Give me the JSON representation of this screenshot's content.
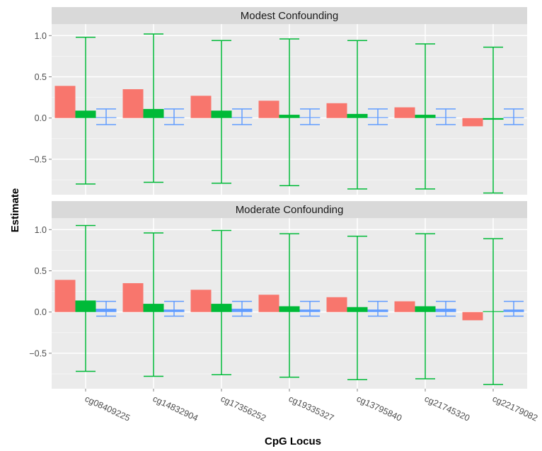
{
  "chart_data": {
    "type": "bar",
    "xlabel": "CpG Locus",
    "ylabel": "Estimate",
    "categories": [
      "cg08409225",
      "cg14832904",
      "cg17356252",
      "cg19335327",
      "cg13795840",
      "cg21745320",
      "cg22179082"
    ],
    "yticks": [
      -0.5,
      0.0,
      0.5,
      1.0
    ],
    "ytick_labels": [
      "−0.5",
      "0.0",
      "0.5",
      "1.0"
    ],
    "ylim": [
      -0.93,
      1.14
    ],
    "grid": true,
    "colors": {
      "series1": "#F8766D",
      "series2": "#00BA38",
      "series3": "#619CFF",
      "panel_bg": "#EBEBEB",
      "strip_bg": "#D9D9D9"
    },
    "panels": [
      {
        "title": "Modest Confounding",
        "series": [
          {
            "values": [
              0.39,
              0.35,
              0.27,
              0.21,
              0.18,
              0.13,
              -0.1
            ]
          },
          {
            "values": [
              0.09,
              0.11,
              0.09,
              0.04,
              0.05,
              0.04,
              -0.02
            ],
            "lower": [
              -0.8,
              -0.78,
              -0.79,
              -0.82,
              -0.86,
              -0.86,
              -0.91
            ],
            "upper": [
              0.98,
              1.02,
              0.94,
              0.96,
              0.94,
              0.9,
              0.86
            ]
          },
          {
            "values": [
              0.01,
              0.01,
              0.01,
              0.01,
              0.01,
              0.01,
              0.01
            ],
            "lower": [
              -0.08,
              -0.08,
              -0.08,
              -0.08,
              -0.08,
              -0.08,
              -0.08
            ],
            "upper": [
              0.11,
              0.11,
              0.11,
              0.11,
              0.11,
              0.11,
              0.11
            ]
          }
        ]
      },
      {
        "title": "Moderate Confounding",
        "series": [
          {
            "values": [
              0.39,
              0.35,
              0.27,
              0.21,
              0.18,
              0.13,
              -0.1
            ]
          },
          {
            "values": [
              0.14,
              0.1,
              0.1,
              0.07,
              0.06,
              0.07,
              0.01
            ],
            "lower": [
              -0.72,
              -0.78,
              -0.76,
              -0.79,
              -0.82,
              -0.81,
              -0.88
            ],
            "upper": [
              1.05,
              0.96,
              0.99,
              0.95,
              0.92,
              0.95,
              0.89
            ]
          },
          {
            "values": [
              0.04,
              0.03,
              0.04,
              0.03,
              0.03,
              0.04,
              0.03
            ],
            "lower": [
              -0.05,
              -0.05,
              -0.05,
              -0.05,
              -0.05,
              -0.05,
              -0.05
            ],
            "upper": [
              0.13,
              0.13,
              0.13,
              0.13,
              0.13,
              0.13,
              0.13
            ]
          }
        ]
      }
    ]
  }
}
